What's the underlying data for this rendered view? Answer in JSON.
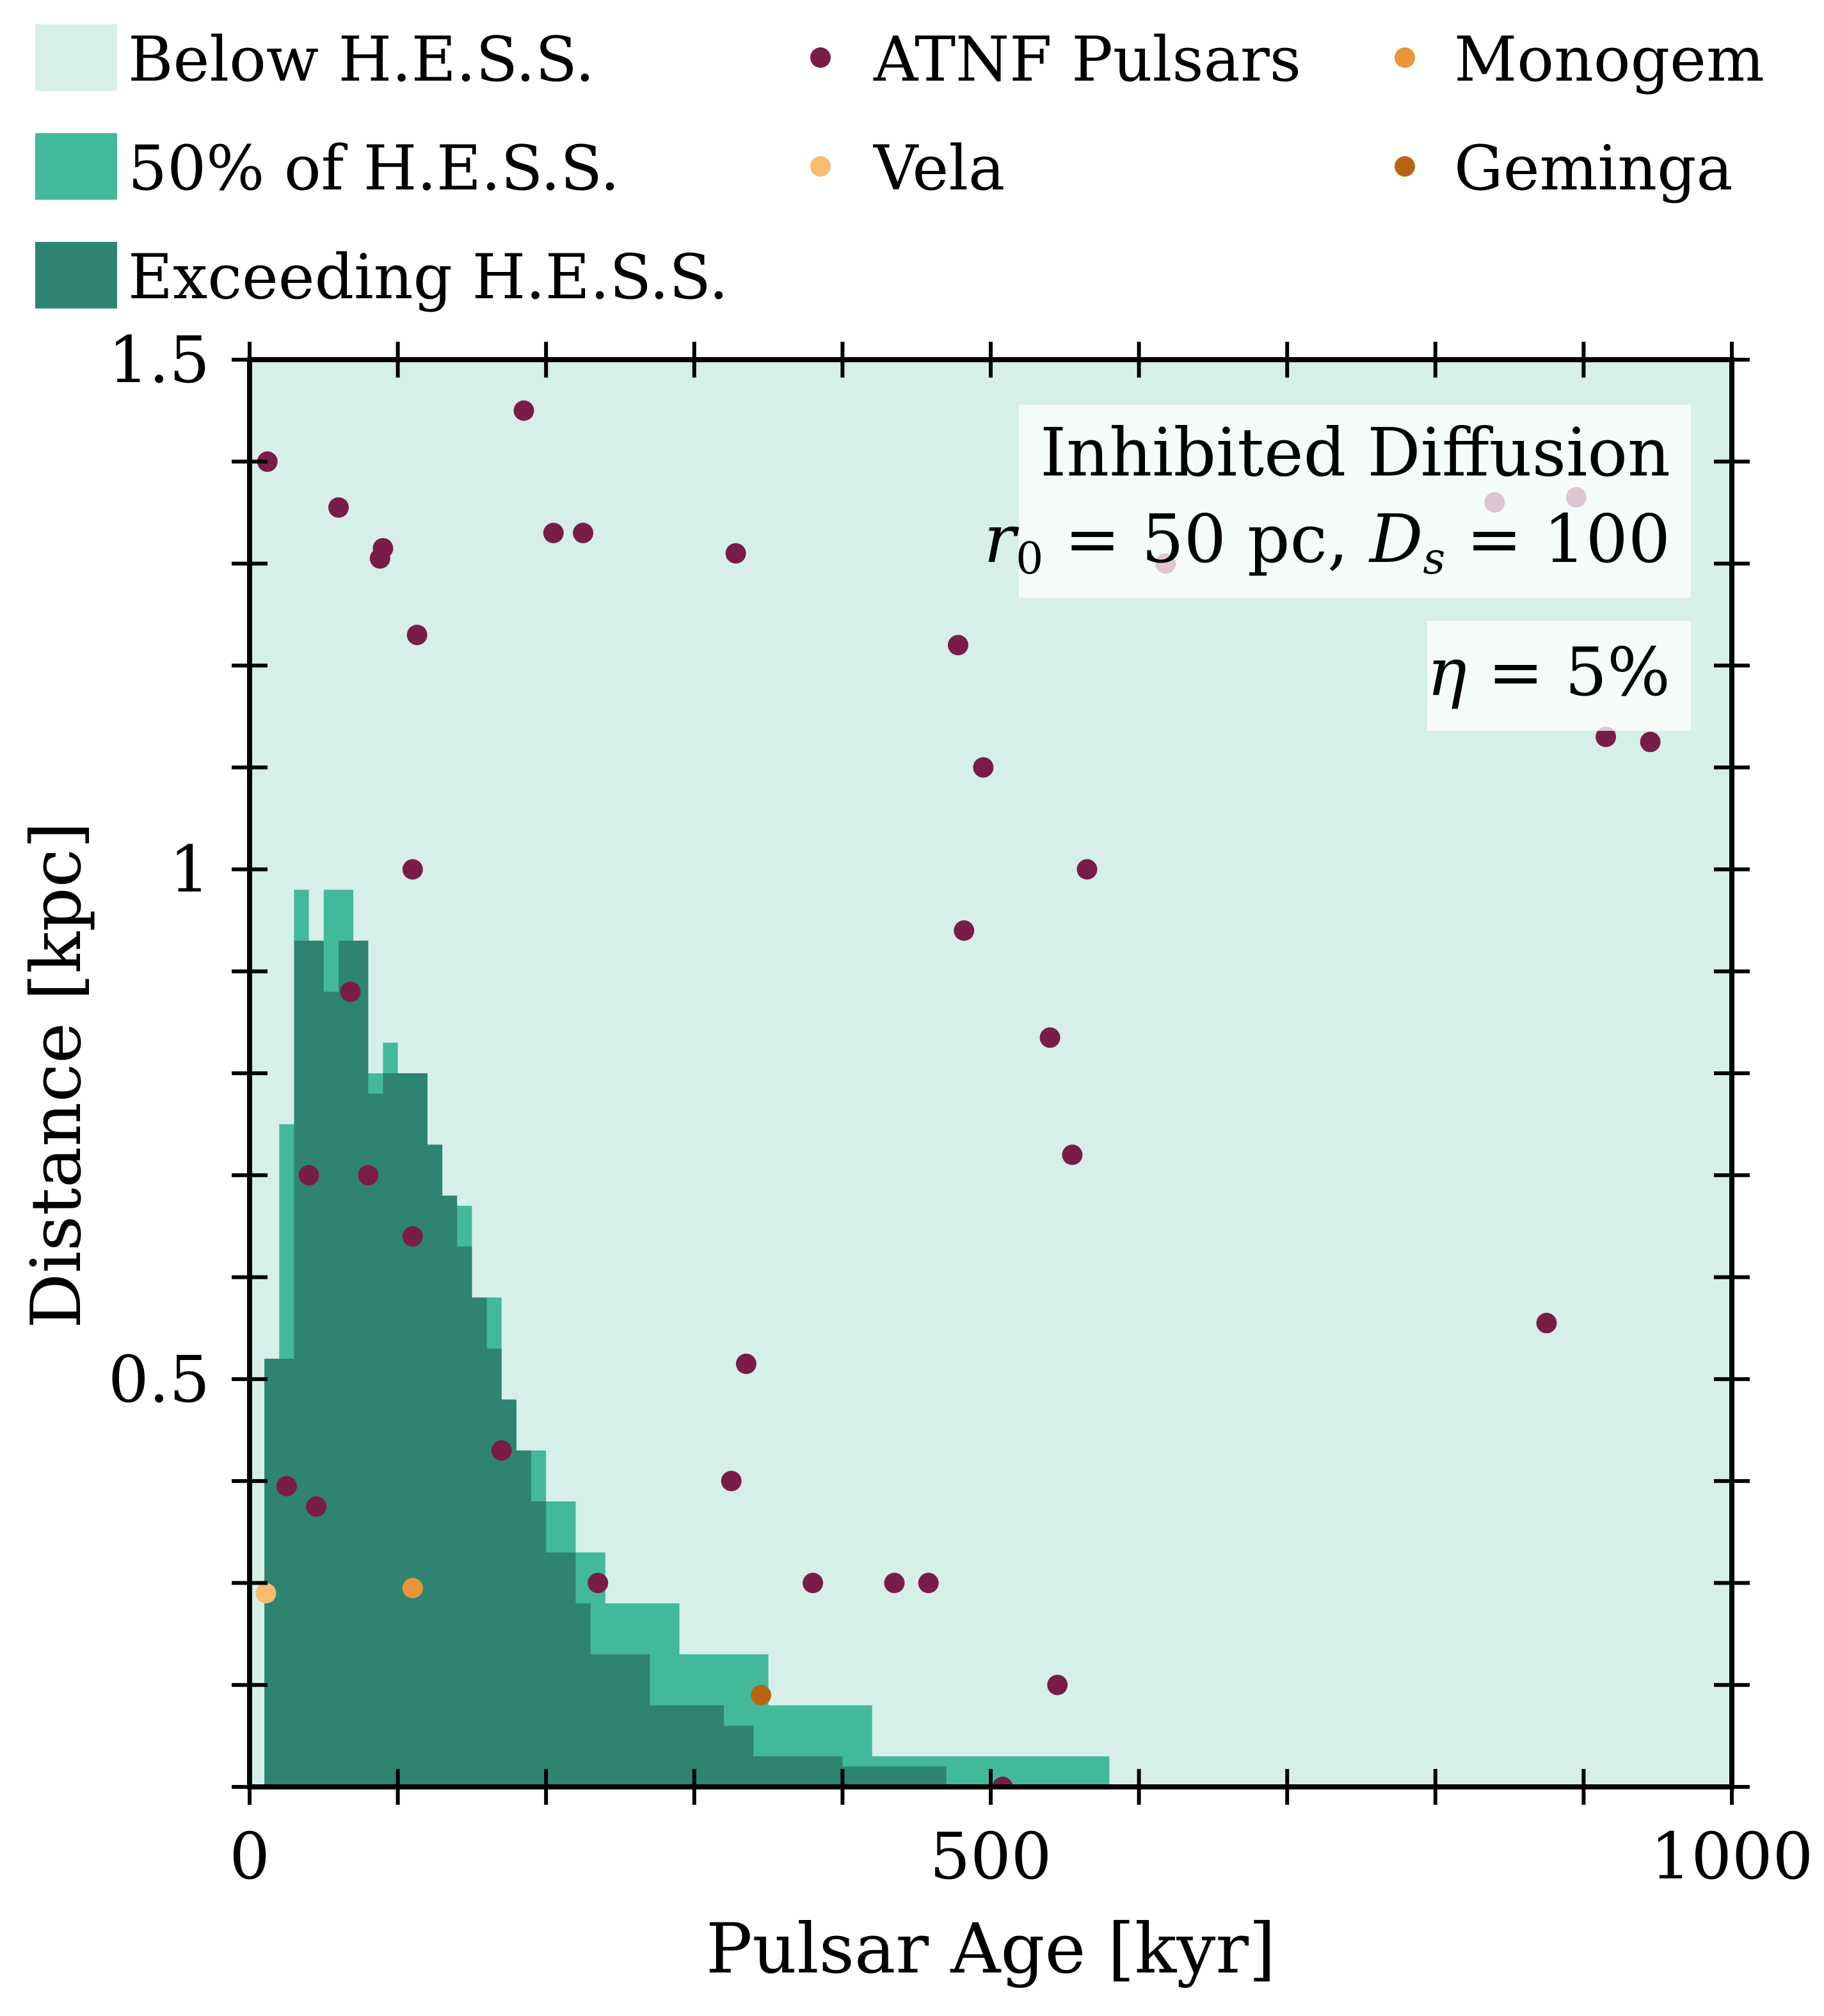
{
  "chart_data": {
    "type": "scatter",
    "xlabel": "Pulsar Age [kyr]",
    "ylabel": "Distance [kpc]",
    "xlim": [
      0,
      1000
    ],
    "ylim": [
      0.1,
      1.5
    ],
    "xticks": [
      0,
      500,
      1000
    ],
    "xtick_labels": [
      "0",
      "500",
      "1000"
    ],
    "yticks": [
      0.5,
      1,
      1.5
    ],
    "ytick_labels": [
      "0.5",
      "1",
      "1.5"
    ],
    "x_minor_step": 100,
    "y_minor_step": 0.1,
    "legend": {
      "placement": "top, outside plot",
      "entries": [
        {
          "label": "Below H.E.S.S.",
          "kind": "patch",
          "color": "#d6efe8"
        },
        {
          "label": "50% of H.E.S.S.",
          "kind": "patch",
          "color": "#42b99b"
        },
        {
          "label": "Exceeding H.E.S.S.",
          "kind": "patch",
          "color": "#2e8470"
        },
        {
          "label": "ATNF Pulsars",
          "kind": "marker",
          "color": "#7a1c48"
        },
        {
          "label": "Vela",
          "kind": "marker",
          "color": "#f6bd6f"
        },
        {
          "label": "Monogem",
          "kind": "marker",
          "color": "#ea953a"
        },
        {
          "label": "Geminga",
          "kind": "marker",
          "color": "#b96413"
        }
      ]
    },
    "annotations": {
      "model": "Inhibited Diffusion",
      "params_r0": "r",
      "params_r0_sub": "0",
      "params_r0_value": " = 50 pc, ",
      "params_ds": "D",
      "params_ds_sub": "s",
      "params_ds_value": " = 100",
      "eta_symbol": "η",
      "eta_value": " = 5%"
    },
    "regions": {
      "below_color": "#d6efe8",
      "half_color": "#42b99b",
      "exceed_color": "#2e8470",
      "half_steps": [
        [
          10,
          0.52
        ],
        [
          20,
          0.75
        ],
        [
          30,
          0.98
        ],
        [
          40,
          0.93
        ],
        [
          50,
          0.98
        ],
        [
          70,
          0.93
        ],
        [
          80,
          0.8
        ],
        [
          90,
          0.83
        ],
        [
          100,
          0.8
        ],
        [
          120,
          0.73
        ],
        [
          130,
          0.67
        ],
        [
          150,
          0.58
        ],
        [
          170,
          0.48
        ],
        [
          180,
          0.43
        ],
        [
          200,
          0.38
        ],
        [
          220,
          0.33
        ],
        [
          240,
          0.28
        ],
        [
          260,
          0.28
        ],
        [
          290,
          0.23
        ],
        [
          330,
          0.23
        ],
        [
          350,
          0.18
        ],
        [
          420,
          0.13
        ],
        [
          580,
          0.1
        ]
      ],
      "exceed_steps": [
        [
          10,
          0.52
        ],
        [
          30,
          0.93
        ],
        [
          50,
          0.88
        ],
        [
          60,
          0.93
        ],
        [
          80,
          0.78
        ],
        [
          90,
          0.8
        ],
        [
          120,
          0.73
        ],
        [
          130,
          0.68
        ],
        [
          140,
          0.63
        ],
        [
          140,
          0.63
        ],
        [
          150,
          0.58
        ],
        [
          160,
          0.53
        ],
        [
          170,
          0.48
        ],
        [
          180,
          0.43
        ],
        [
          190,
          0.38
        ],
        [
          200,
          0.33
        ],
        [
          220,
          0.28
        ],
        [
          230,
          0.23
        ],
        [
          270,
          0.18
        ],
        [
          320,
          0.16
        ],
        [
          340,
          0.13
        ],
        [
          360,
          0.13
        ],
        [
          400,
          0.12
        ],
        [
          470,
          0.1
        ]
      ]
    },
    "series": [
      {
        "name": "ATNF Pulsars",
        "color": "#7a1c48",
        "points": [
          [
            12,
            1.4
          ],
          [
            60,
            1.355
          ],
          [
            90,
            1.315
          ],
          [
            88,
            1.305
          ],
          [
            113,
            1.23
          ],
          [
            110,
            1.0
          ],
          [
            185,
            1.45
          ],
          [
            205,
            1.33
          ],
          [
            225,
            1.33
          ],
          [
            328,
            1.31
          ],
          [
            478,
            1.22
          ],
          [
            495,
            1.1
          ],
          [
            565,
            1.0
          ],
          [
            482,
            0.94
          ],
          [
            540,
            0.835
          ],
          [
            555,
            0.72
          ],
          [
            618,
            1.3
          ],
          [
            840,
            1.36
          ],
          [
            895,
            1.365
          ],
          [
            915,
            1.13
          ],
          [
            945,
            1.125
          ],
          [
            875,
            0.555
          ],
          [
            68,
            0.88
          ],
          [
            40,
            0.7
          ],
          [
            80,
            0.7
          ],
          [
            110,
            0.64
          ],
          [
            335,
            0.515
          ],
          [
            170,
            0.43
          ],
          [
            325,
            0.4
          ],
          [
            25,
            0.395
          ],
          [
            45,
            0.375
          ],
          [
            235,
            0.3
          ],
          [
            380,
            0.3
          ],
          [
            435,
            0.3
          ],
          [
            458,
            0.3
          ],
          [
            545,
            0.2
          ],
          [
            508,
            0.1
          ]
        ]
      },
      {
        "name": "Vela",
        "color": "#f6bd6f",
        "points": [
          [
            11,
            0.29
          ]
        ]
      },
      {
        "name": "Monogem",
        "color": "#ea953a",
        "points": [
          [
            110,
            0.295
          ]
        ]
      },
      {
        "name": "Geminga",
        "color": "#b96413",
        "points": [
          [
            345,
            0.19
          ]
        ]
      }
    ]
  }
}
